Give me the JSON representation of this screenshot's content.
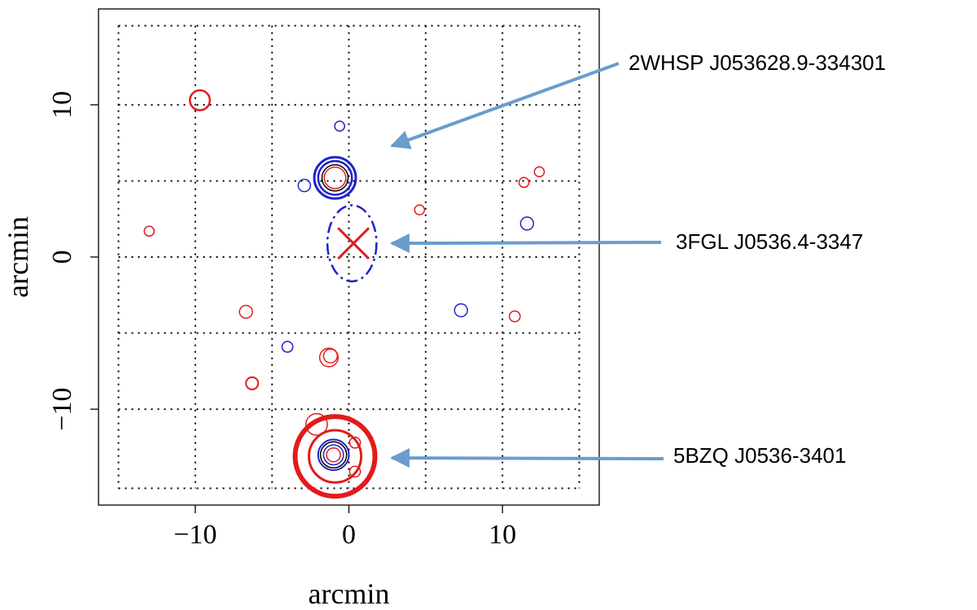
{
  "chart_data": {
    "type": "scatter",
    "xlabel": "arcmin",
    "ylabel": "arcmin",
    "xlim": [
      -16.3,
      16.3
    ],
    "ylim": [
      -16.3,
      16.3
    ],
    "xticks": [
      -10,
      0,
      10
    ],
    "yticks": [
      -10,
      0,
      10
    ],
    "xtick_labels": [
      "−10",
      "0",
      "10"
    ],
    "ytick_labels": [
      "−10",
      "0",
      "10"
    ],
    "grid": "dotted",
    "colors": {
      "red": "#e31b1b",
      "blue": "#1f22c8",
      "black": "#000000",
      "arrow": "#6a9ccd"
    },
    "grid_h": [
      15.2,
      10,
      5,
      0,
      -5,
      -10,
      -15.2
    ],
    "grid_v": [
      -15,
      -10,
      -5,
      0,
      5,
      10,
      15
    ],
    "markers": [
      {
        "x": -9.7,
        "y": 10.3,
        "r": 0.65,
        "color": "red",
        "w": 2.5
      },
      {
        "x": -0.6,
        "y": 8.6,
        "r": 0.32,
        "color": "blue",
        "w": 1.5
      },
      {
        "x": -0.9,
        "y": 5.2,
        "r": 1.35,
        "color": "blue",
        "w": 3
      },
      {
        "x": -0.9,
        "y": 5.2,
        "r": 1.1,
        "color": "blue",
        "w": 2.5
      },
      {
        "x": -0.9,
        "y": 5.2,
        "r": 0.85,
        "color": "black",
        "w": 1.5
      },
      {
        "x": -0.9,
        "y": 5.2,
        "r": 0.7,
        "color": "red",
        "w": 1.5
      },
      {
        "x": -2.9,
        "y": 4.7,
        "r": 0.4,
        "color": "blue",
        "w": 1.5
      },
      {
        "x": 11.4,
        "y": 4.9,
        "r": 0.32,
        "color": "red",
        "w": 1.5
      },
      {
        "x": 12.4,
        "y": 5.6,
        "r": 0.32,
        "color": "red",
        "w": 1.5
      },
      {
        "x": -13.0,
        "y": 1.7,
        "r": 0.32,
        "color": "red",
        "w": 1.5
      },
      {
        "x": 4.6,
        "y": 3.1,
        "r": 0.32,
        "color": "red",
        "w": 1.5
      },
      {
        "x": 11.6,
        "y": 2.2,
        "r": 0.42,
        "color": "blue",
        "w": 1.5
      },
      {
        "x": -6.7,
        "y": -3.6,
        "r": 0.42,
        "color": "red",
        "w": 1.5
      },
      {
        "x": 7.3,
        "y": -3.5,
        "r": 0.42,
        "color": "blue",
        "w": 1.5
      },
      {
        "x": 10.8,
        "y": -3.9,
        "r": 0.35,
        "color": "red",
        "w": 1.5
      },
      {
        "x": -4.0,
        "y": -5.9,
        "r": 0.35,
        "color": "blue",
        "w": 1.5
      },
      {
        "x": -1.3,
        "y": -6.6,
        "r": 0.6,
        "color": "red",
        "w": 1.5
      },
      {
        "x": -1.2,
        "y": -6.5,
        "r": 0.45,
        "color": "red",
        "w": 1.5
      },
      {
        "x": -6.3,
        "y": -8.3,
        "r": 0.4,
        "color": "red",
        "w": 2
      },
      {
        "x": -2.1,
        "y": -11.0,
        "r": 0.7,
        "color": "red",
        "w": 1.5
      },
      {
        "x": -0.9,
        "y": -13.1,
        "r": 2.6,
        "color": "red",
        "w": 6
      },
      {
        "x": -0.9,
        "y": -13.1,
        "r": 1.7,
        "color": "red",
        "w": 3
      },
      {
        "x": -1.0,
        "y": -13.0,
        "r": 1.0,
        "color": "blue",
        "w": 2
      },
      {
        "x": -1.0,
        "y": -13.0,
        "r": 0.85,
        "color": "black",
        "w": 1.5
      },
      {
        "x": -1.0,
        "y": -13.0,
        "r": 0.65,
        "color": "blue",
        "w": 1.5
      },
      {
        "x": -1.0,
        "y": -13.0,
        "r": 0.45,
        "color": "red",
        "w": 1.5
      },
      {
        "x": 0.4,
        "y": -12.2,
        "r": 0.35,
        "color": "red",
        "w": 1.5
      },
      {
        "x": 0.4,
        "y": -14.1,
        "r": 0.35,
        "color": "red",
        "w": 1.5
      }
    ],
    "error_ellipse": {
      "cx": 0.2,
      "cy": 0.9,
      "rx": 1.6,
      "ry": 2.5,
      "color": "blue",
      "w": 2.5
    },
    "cross": {
      "x": 0.3,
      "y": 0.9,
      "size": 1.0,
      "color": "red",
      "w": 3
    },
    "annotations": [
      {
        "text": "2WHSP J053628.9-334301",
        "x": 2.8,
        "y": 7.3
      },
      {
        "text": "3FGL J0536.4-3347",
        "x": 2.8,
        "y": 0.9
      },
      {
        "text": "5BZQ J0536-3401",
        "x": 2.8,
        "y": -13.2
      }
    ]
  }
}
